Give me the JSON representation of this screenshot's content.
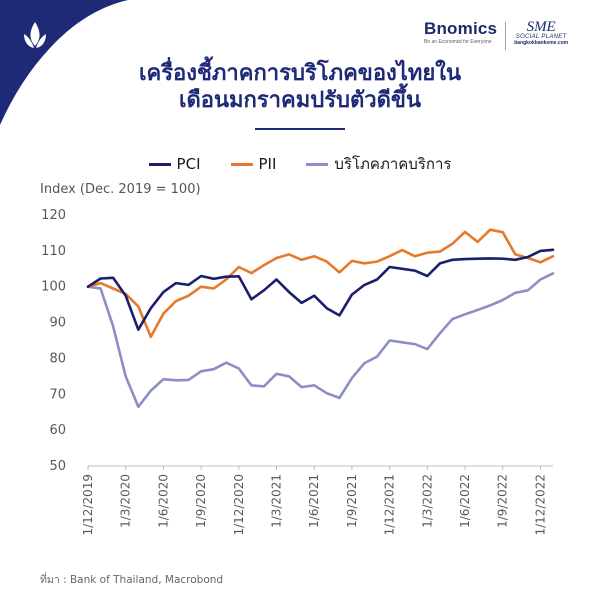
{
  "header": {
    "brand_name": "Bnomics",
    "brand_tagline": "Be an Economist for Everyone",
    "partner_name": "SME",
    "partner_sub": "SOCIAL PLANET",
    "partner_url": "bangkokbanksme.com",
    "corner_color": "#1e2a78"
  },
  "title_line1": "เครื่องชี้ภาคการบริโภคของไทยใน",
  "title_line2": "เดือนมกราคมปรับตัวดีขึ้น",
  "unit_label": "Index (Dec. 2019 = 100)",
  "source": "ที่มา :  Bank of Thailand, Macrobond",
  "chart_data": {
    "type": "line",
    "ylabel": "Index (Dec. 2019 = 100)",
    "ylim": [
      50,
      120
    ],
    "yticks": [
      50,
      60,
      70,
      80,
      90,
      100,
      110,
      120
    ],
    "x": [
      "12/2019",
      "1/2020",
      "2/2020",
      "3/2020",
      "4/2020",
      "5/2020",
      "6/2020",
      "7/2020",
      "8/2020",
      "9/2020",
      "10/2020",
      "11/2020",
      "12/2020",
      "1/2021",
      "2/2021",
      "3/2021",
      "4/2021",
      "5/2021",
      "6/2021",
      "7/2021",
      "8/2021",
      "9/2021",
      "10/2021",
      "11/2021",
      "12/2021",
      "1/2022",
      "2/2022",
      "3/2022",
      "4/2022",
      "5/2022",
      "6/2022",
      "7/2022",
      "8/2022",
      "9/2022",
      "10/2022",
      "11/2022",
      "12/2022",
      "1/2023"
    ],
    "xticks": [
      {
        "index": 0,
        "label": "1/12/2019"
      },
      {
        "index": 3,
        "label": "1/3/2020"
      },
      {
        "index": 6,
        "label": "1/6/2020"
      },
      {
        "index": 9,
        "label": "1/9/2020"
      },
      {
        "index": 12,
        "label": "1/12/2020"
      },
      {
        "index": 15,
        "label": "1/3/2021"
      },
      {
        "index": 18,
        "label": "1/6/2021"
      },
      {
        "index": 21,
        "label": "1/9/2021"
      },
      {
        "index": 24,
        "label": "1/12/2021"
      },
      {
        "index": 27,
        "label": "1/3/2022"
      },
      {
        "index": 30,
        "label": "1/6/2022"
      },
      {
        "index": 33,
        "label": "1/9/2022"
      },
      {
        "index": 36,
        "label": "1/12/2022"
      }
    ],
    "grid": false,
    "legend": "top",
    "series": [
      {
        "name": "PCI",
        "color": "#1a1f6e",
        "values": [
          100,
          102.3,
          102.5,
          97.5,
          88,
          94,
          98.5,
          101,
          100.5,
          103,
          102.2,
          102.8,
          102.9,
          96.5,
          99,
          102,
          98.5,
          95.5,
          97.5,
          94,
          92,
          97.8,
          100.5,
          102,
          105.5,
          105,
          104.5,
          103,
          106.5,
          107.5,
          107.7,
          107.8,
          107.9,
          107.8,
          107.5,
          108.3,
          110,
          110.3
        ]
      },
      {
        "name": "PII",
        "color": "#e6792b",
        "values": [
          100,
          101,
          99.5,
          98,
          94.5,
          86,
          92.5,
          96,
          97.5,
          100,
          99.5,
          102,
          105.5,
          103.8,
          106,
          108,
          109,
          107.5,
          108.5,
          107,
          104,
          107.2,
          106.5,
          107,
          108.5,
          110.2,
          108.5,
          109.5,
          109.8,
          112,
          115.3,
          112.5,
          115.9,
          115.2,
          109,
          108,
          106.8,
          108.5
        ]
      },
      {
        "name": "บริโภคภาคบริการ",
        "color": "#8b8fc6",
        "values": [
          100,
          99.5,
          89,
          75,
          66.5,
          71,
          74.2,
          73.9,
          74,
          76.4,
          77,
          78.8,
          77.2,
          72.5,
          72.2,
          75.7,
          75,
          72,
          72.5,
          70.3,
          69,
          74.5,
          78.7,
          80.5,
          85,
          84.5,
          84,
          82.6,
          87,
          91,
          92.3,
          93.5,
          94.8,
          96.3,
          98.3,
          99,
          102,
          103.7
        ]
      }
    ]
  }
}
